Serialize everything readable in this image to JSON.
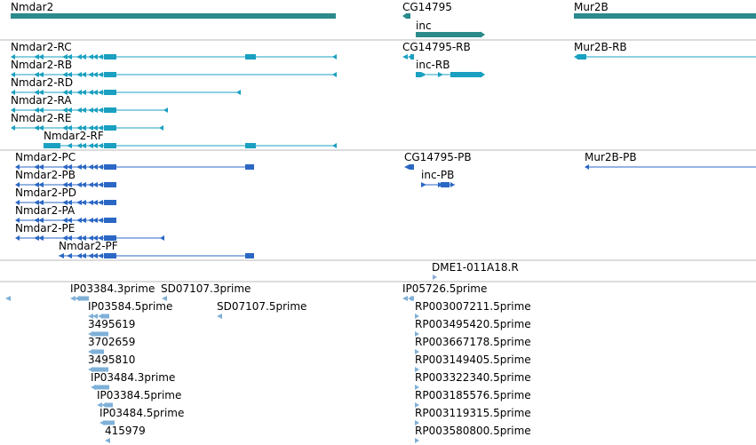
{
  "colors": {
    "gene": "#2b8a8a",
    "transcript": "#1aa0c0",
    "protein": "#2b67c4",
    "feature": "#8aaad8",
    "ests": "#7fb0d8",
    "divider": "#b8b8b8"
  },
  "tracks": [
    {
      "name": "gene",
      "items": [
        {
          "label": "Nmdar2",
          "strand": "plus"
        },
        {
          "label": "CG14795",
          "strand": "minus"
        },
        {
          "label": "inc",
          "strand": "plus"
        },
        {
          "label": "Mur2B",
          "strand": "plus"
        }
      ]
    },
    {
      "name": "transcript",
      "items": [
        {
          "label": "Nmdar2-RC"
        },
        {
          "label": "Nmdar2-RB"
        },
        {
          "label": "Nmdar2-RD"
        },
        {
          "label": "Nmdar2-RA"
        },
        {
          "label": "Nmdar2-RE"
        },
        {
          "label": "Nmdar2-RF"
        },
        {
          "label": "CG14795-RB"
        },
        {
          "label": "inc-RB"
        },
        {
          "label": "Mur2B-RB"
        }
      ]
    },
    {
      "name": "protein",
      "items": [
        {
          "label": "Nmdar2-PC"
        },
        {
          "label": "Nmdar2-PB"
        },
        {
          "label": "Nmdar2-PD"
        },
        {
          "label": "Nmdar2-PA"
        },
        {
          "label": "Nmdar2-PE"
        },
        {
          "label": "Nmdar2-PF"
        },
        {
          "label": "CG14795-PB"
        },
        {
          "label": "inc-PB"
        },
        {
          "label": "Mur2B-PB"
        }
      ]
    },
    {
      "name": "feature",
      "items": [
        {
          "label": "DME1-011A18.R"
        }
      ]
    },
    {
      "name": "ests",
      "items": [
        {
          "label": "IP03384.3prime"
        },
        {
          "label": "SD07107.3prime"
        },
        {
          "label": "IP03584.5prime"
        },
        {
          "label": "SD07107.5prime"
        },
        {
          "label": "3495619"
        },
        {
          "label": "3702659"
        },
        {
          "label": "3495810"
        },
        {
          "label": "IP03484.3prime"
        },
        {
          "label": "IP03384.5prime"
        },
        {
          "label": "IP03484.5prime"
        },
        {
          "label": "415979"
        },
        {
          "label": "IP05726.5prime"
        },
        {
          "label": "RP003007211.5prime"
        },
        {
          "label": "RP003495420.5prime"
        },
        {
          "label": "RP003667178.5prime"
        },
        {
          "label": "RP003149405.5prime"
        },
        {
          "label": "RP003322340.5prime"
        },
        {
          "label": "RP003185576.5prime"
        },
        {
          "label": "RP003119315.5prime"
        },
        {
          "label": "RP003580800.5prime"
        }
      ]
    }
  ]
}
